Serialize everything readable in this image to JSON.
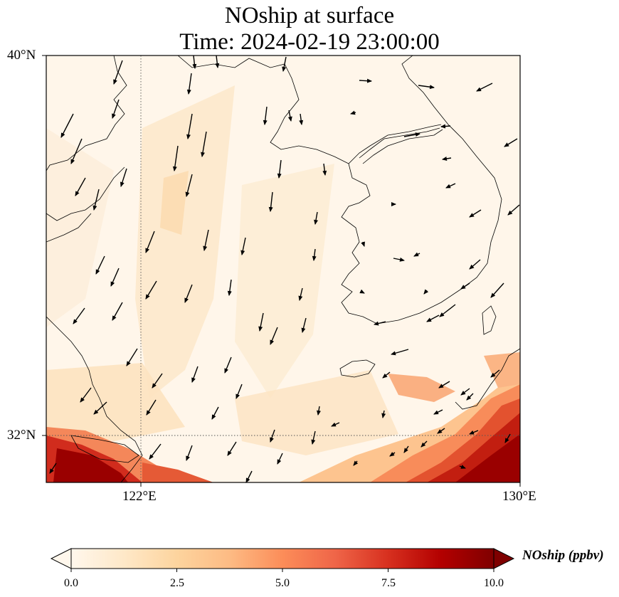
{
  "title_line1": "NOship at surface",
  "title_line2": "Time: 2024-02-19 23:00:00",
  "axes": {
    "lat_ticks": [
      "40°N",
      "32°N"
    ],
    "lon_ticks": [
      "122°E",
      "130°E"
    ],
    "lon_range": [
      120,
      130
    ],
    "lat_range": [
      31,
      40
    ],
    "gridlines": "dotted at 122°E and 32°N"
  },
  "colorbar": {
    "label": "NOship (ppbv)",
    "ticks": [
      "0.0",
      "2.5",
      "5.0",
      "7.5",
      "10.0"
    ],
    "range": [
      0,
      10
    ],
    "colormap": "OrRd",
    "extend": "both",
    "colors": [
      "#fff7ec",
      "#fee8c8",
      "#fdd49e",
      "#fdbb84",
      "#fc8d59",
      "#ef6548",
      "#d7301f",
      "#b30000",
      "#7f0000"
    ]
  },
  "features": [
    "coastlines",
    "wind-vectors",
    "ship-NO-concentration-field"
  ],
  "icons": {
    "arrows": "wind-arrow-icon"
  }
}
